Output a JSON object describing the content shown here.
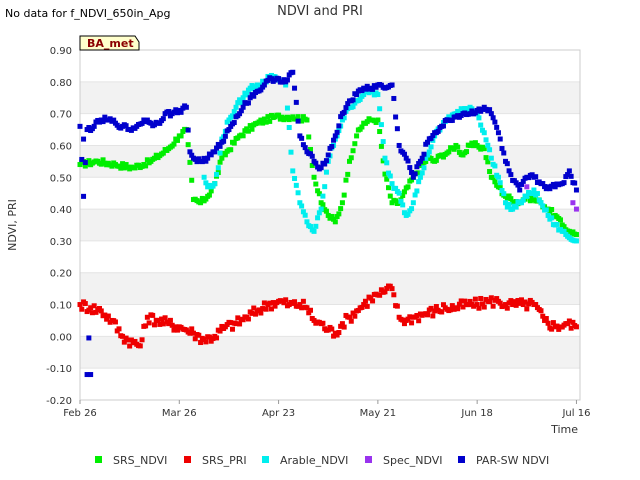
{
  "header": {
    "status_text": "No data for f_NDVI_650in_Apg",
    "title": "NDVI and PRI"
  },
  "chart_data": {
    "type": "scatter",
    "title": "NDVI and PRI",
    "xlabel": "Time",
    "ylabel": "NDVI, PRI",
    "ylim": [
      -0.2,
      0.9
    ],
    "yticks": [
      "-0.20",
      "-0.10",
      "0.00",
      "0.10",
      "0.20",
      "0.30",
      "0.40",
      "0.50",
      "0.60",
      "0.70",
      "0.80",
      "0.90"
    ],
    "xlim_days": [
      0,
      141
    ],
    "xticks": [
      {
        "label": "Feb 26",
        "day": 0
      },
      {
        "label": "Mar 26",
        "day": 28
      },
      {
        "label": "Apr 23",
        "day": 56
      },
      {
        "label": "May 21",
        "day": 84
      },
      {
        "label": "Jun 18",
        "day": 112
      },
      {
        "label": "Jul 16",
        "day": 140
      }
    ],
    "annotation": "BA_met",
    "grid": true,
    "legend_position": "bottom",
    "series": [
      {
        "name": "SRS_NDVI",
        "color": "#00ee00",
        "x": [
          0,
          5,
          10,
          15,
          20,
          25,
          28,
          30,
          32,
          34,
          36,
          38,
          40,
          45,
          50,
          55,
          60,
          64,
          66,
          68,
          70,
          72,
          74,
          76,
          78,
          80,
          82,
          84,
          86,
          88,
          90,
          94,
          98,
          100,
          102,
          104,
          106,
          108,
          110,
          112,
          114,
          116,
          118,
          120,
          124,
          126,
          128,
          130,
          132,
          134,
          136,
          138,
          140
        ],
        "values": [
          0.54,
          0.55,
          0.54,
          0.53,
          0.55,
          0.59,
          0.63,
          0.65,
          0.43,
          0.42,
          0.44,
          0.48,
          0.56,
          0.63,
          0.67,
          0.69,
          0.69,
          0.68,
          0.5,
          0.42,
          0.38,
          0.36,
          0.42,
          0.55,
          0.63,
          0.67,
          0.68,
          0.68,
          0.51,
          0.42,
          0.42,
          0.5,
          0.56,
          0.55,
          0.57,
          0.58,
          0.6,
          0.57,
          0.6,
          0.6,
          0.59,
          0.5,
          0.47,
          0.44,
          0.42,
          0.44,
          0.43,
          0.42,
          0.4,
          0.38,
          0.35,
          0.33,
          0.32
        ]
      },
      {
        "name": "SRS_PRI",
        "color": "#ee0000",
        "x": [
          0,
          3,
          6,
          9,
          12,
          15,
          17,
          19,
          22,
          25,
          28,
          30,
          32,
          35,
          38,
          41,
          44,
          47,
          50,
          53,
          56,
          59,
          62,
          64,
          66,
          68,
          70,
          72,
          74,
          76,
          78,
          80,
          82,
          84,
          86,
          88,
          90,
          92,
          94,
          97,
          100,
          103,
          106,
          109,
          112,
          115,
          118,
          120,
          122,
          125,
          128,
          131,
          134,
          137,
          140
        ],
        "values": [
          0.1,
          0.09,
          0.08,
          0.05,
          0.0,
          -0.02,
          -0.03,
          0.06,
          0.05,
          0.04,
          0.03,
          0.02,
          0.01,
          -0.01,
          0.0,
          0.03,
          0.04,
          0.06,
          0.08,
          0.1,
          0.11,
          0.1,
          0.1,
          0.09,
          0.05,
          0.04,
          0.02,
          0.01,
          0.04,
          0.06,
          0.08,
          0.1,
          0.12,
          0.13,
          0.14,
          0.15,
          0.06,
          0.05,
          0.06,
          0.07,
          0.08,
          0.09,
          0.09,
          0.1,
          0.1,
          0.11,
          0.11,
          0.1,
          0.1,
          0.1,
          0.1,
          0.05,
          0.03,
          0.04,
          0.03
        ]
      },
      {
        "name": "Arable_NDVI",
        "color": "#00eeee",
        "x": [
          35,
          36,
          37,
          38,
          39,
          40,
          42,
          44,
          46,
          48,
          50,
          52,
          54,
          56,
          58,
          60,
          62,
          64,
          66,
          68,
          70,
          72,
          74,
          76,
          78,
          80,
          82,
          84,
          86,
          88,
          90,
          92,
          94,
          96,
          98,
          100,
          102,
          104,
          106,
          108,
          110,
          112,
          114,
          116,
          118,
          120,
          122,
          124,
          126,
          128,
          130,
          132,
          134,
          136,
          138,
          140
        ],
        "values": [
          0.5,
          0.47,
          0.47,
          0.48,
          0.53,
          0.62,
          0.68,
          0.72,
          0.75,
          0.78,
          0.79,
          0.8,
          0.82,
          0.81,
          0.79,
          0.52,
          0.42,
          0.36,
          0.33,
          0.4,
          0.55,
          0.62,
          0.68,
          0.72,
          0.74,
          0.76,
          0.77,
          0.76,
          0.56,
          0.48,
          0.45,
          0.38,
          0.42,
          0.5,
          0.57,
          0.63,
          0.66,
          0.69,
          0.7,
          0.71,
          0.72,
          0.7,
          0.64,
          0.56,
          0.5,
          0.42,
          0.4,
          0.42,
          0.44,
          0.46,
          0.42,
          0.38,
          0.35,
          0.33,
          0.31,
          0.3
        ]
      },
      {
        "name": "Spec_NDVI",
        "color": "#9933ee",
        "x": [
          126,
          139,
          140
        ],
        "values": [
          0.47,
          0.42,
          0.4
        ]
      },
      {
        "name": "PAR-SW NDVI",
        "color": "#0000cc",
        "x": [
          0,
          1,
          2,
          4,
          6,
          8,
          10,
          12,
          14,
          16,
          18,
          20,
          22,
          24,
          26,
          28,
          30,
          31,
          32,
          34,
          36,
          38,
          40,
          42,
          44,
          46,
          48,
          50,
          52,
          54,
          56,
          58,
          60,
          62,
          64,
          66,
          68,
          70,
          72,
          74,
          76,
          78,
          80,
          82,
          84,
          86,
          88,
          90,
          92,
          94,
          96,
          98,
          100,
          102,
          104,
          106,
          108,
          110,
          112,
          114,
          116,
          118,
          120,
          122,
          124,
          126,
          128,
          130,
          132,
          134,
          136,
          138,
          140
        ],
        "values": [
          0.66,
          0.44,
          0.65,
          0.66,
          0.68,
          0.68,
          0.67,
          0.66,
          0.65,
          0.66,
          0.68,
          0.67,
          0.67,
          0.7,
          0.7,
          0.71,
          0.72,
          0.58,
          0.56,
          0.55,
          0.56,
          0.58,
          0.61,
          0.65,
          0.69,
          0.72,
          0.75,
          0.77,
          0.79,
          0.81,
          0.81,
          0.8,
          0.83,
          0.63,
          0.58,
          0.55,
          0.53,
          0.57,
          0.63,
          0.7,
          0.74,
          0.76,
          0.78,
          0.78,
          0.79,
          0.78,
          0.79,
          0.6,
          0.56,
          0.5,
          0.55,
          0.61,
          0.64,
          0.66,
          0.68,
          0.69,
          0.7,
          0.7,
          0.71,
          0.72,
          0.7,
          0.64,
          0.55,
          0.49,
          0.46,
          0.5,
          0.5,
          0.48,
          0.47,
          0.47,
          0.48,
          0.52,
          0.46
        ]
      }
    ]
  },
  "outliers": {
    "par_low": [
      {
        "x": 2,
        "y": -0.12
      },
      {
        "x": 3,
        "y": -0.12
      },
      {
        "x": 2.5,
        "y": -0.005
      },
      {
        "x": 1,
        "y": 0.62
      }
    ]
  }
}
